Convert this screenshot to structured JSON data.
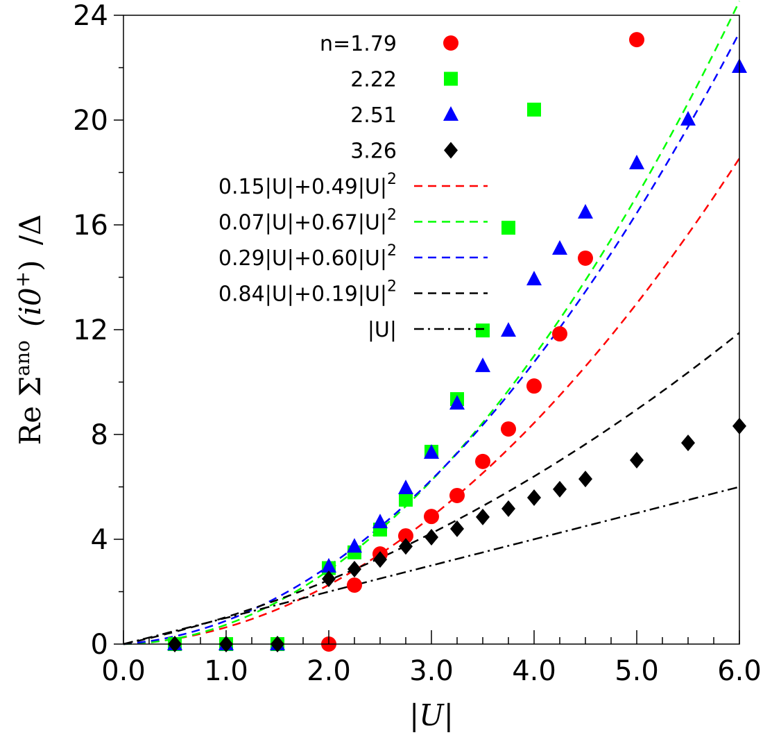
{
  "chart_data": {
    "type": "scatter",
    "xlabel": "|U|",
    "ylabel": "Re Σ^ano (i0⁺) /Δ",
    "ylabel_parts": {
      "re": "Re",
      "sigma": "Σ",
      "sup": "ano",
      "arg": "(i0",
      "argsup": "+",
      "close": ")",
      "div": "/Δ"
    },
    "xlim": [
      0,
      6
    ],
    "ylim": [
      0,
      24
    ],
    "xticks": [
      0,
      1,
      2,
      3,
      4,
      5,
      6
    ],
    "xtick_labels": [
      "0.0",
      "1.0",
      "2.0",
      "3.0",
      "4.0",
      "5.0",
      "6.0"
    ],
    "yticks": [
      0,
      4,
      8,
      12,
      16,
      20,
      24
    ],
    "ytick_labels": [
      "0",
      "4",
      "8",
      "12",
      "16",
      "20",
      "24"
    ],
    "grid": false,
    "legend_placement": "top-center",
    "series": [
      {
        "name": "n=1.79",
        "marker": "circle",
        "color": "#ff0000",
        "x": [
          2.0,
          2.25,
          2.5,
          2.75,
          3.0,
          3.25,
          3.5,
          3.75,
          4.0,
          4.25,
          4.5,
          5.0
        ],
        "y": [
          0,
          2.25,
          3.44,
          4.13,
          4.87,
          5.67,
          6.97,
          8.21,
          9.85,
          11.84,
          14.73,
          23.07
        ]
      },
      {
        "name": "2.22",
        "marker": "square",
        "color": "#00ff00",
        "x": [
          0.5,
          1.0,
          1.5,
          2.0,
          2.25,
          2.5,
          2.75,
          3.0,
          3.25,
          3.5,
          3.75,
          4.0
        ],
        "y": [
          0,
          0,
          0,
          2.9,
          3.5,
          4.37,
          5.51,
          7.34,
          9.35,
          11.97,
          15.89,
          20.4
        ]
      },
      {
        "name": "2.51",
        "marker": "triangle",
        "color": "#0000ff",
        "x": [
          0.5,
          1.0,
          1.5,
          2.0,
          2.25,
          2.5,
          2.75,
          3.0,
          3.25,
          3.5,
          3.75,
          4.0,
          4.25,
          4.5,
          5.0,
          5.5,
          6.0
        ],
        "y": [
          0,
          0,
          0,
          2.97,
          3.73,
          4.66,
          5.96,
          7.31,
          9.19,
          10.62,
          11.97,
          13.93,
          15.1,
          16.48,
          18.36,
          20.03,
          22.04
        ]
      },
      {
        "name": "3.26",
        "marker": "diamond",
        "color": "#000000",
        "x": [
          0.5,
          1.0,
          1.5,
          2.0,
          2.25,
          2.5,
          2.75,
          3.0,
          3.25,
          3.5,
          3.75,
          4.0,
          4.25,
          4.5,
          5.0,
          5.5,
          6.0
        ],
        "y": [
          0,
          0,
          0,
          2.49,
          2.86,
          3.23,
          3.73,
          4.08,
          4.4,
          4.85,
          5.17,
          5.59,
          5.91,
          6.3,
          7.02,
          7.68,
          8.32
        ]
      }
    ],
    "fits": [
      {
        "label_main": "0.15|U|+0.49|U|",
        "label_sup": "2",
        "a": 0.15,
        "b": 0.49,
        "color": "#ff0000",
        "style": "dashed"
      },
      {
        "label_main": "0.07|U|+0.67|U|",
        "label_sup": "2",
        "a": 0.07,
        "b": 0.67,
        "color": "#00ff00",
        "style": "dashed"
      },
      {
        "label_main": "0.29|U|+0.60|U|",
        "label_sup": "2",
        "a": 0.29,
        "b": 0.6,
        "color": "#0000ff",
        "style": "dashed"
      },
      {
        "label_main": "0.84|U|+0.19|U|",
        "label_sup": "2",
        "a": 0.84,
        "b": 0.19,
        "color": "#000000",
        "style": "dashed"
      },
      {
        "label_main": "|U|",
        "label_sup": "",
        "a": 1.0,
        "b": 0.0,
        "color": "#000000",
        "style": "dashdot"
      }
    ]
  }
}
